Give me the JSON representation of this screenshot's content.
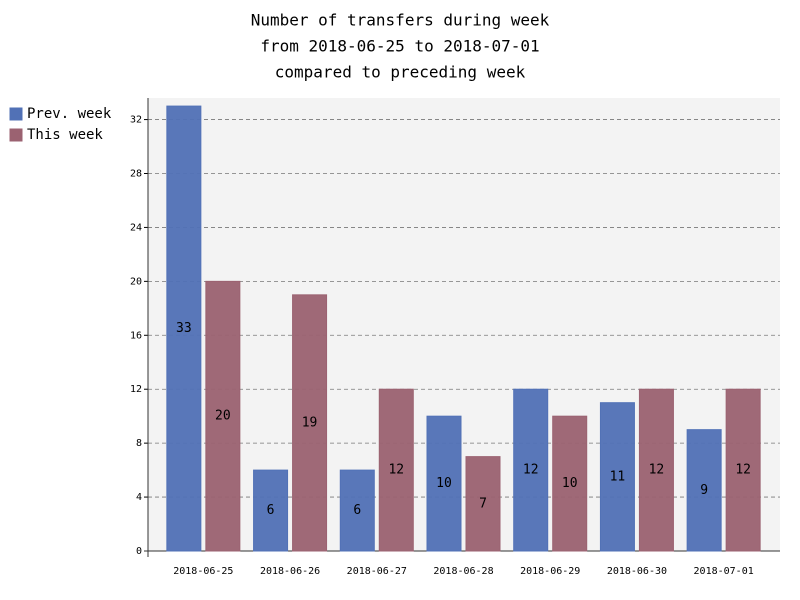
{
  "chart_data": {
    "type": "bar",
    "title": [
      "Number of transfers during week",
      "from 2018-06-25 to 2018-07-01",
      "compared to preceding week"
    ],
    "categories": [
      "2018-06-25",
      "2018-06-26",
      "2018-06-27",
      "2018-06-28",
      "2018-06-29",
      "2018-06-30",
      "2018-07-01"
    ],
    "series": [
      {
        "name": "Prev. week",
        "color": "#5171b6",
        "values": [
          33,
          6,
          6,
          10,
          12,
          11,
          9
        ]
      },
      {
        "name": "This week",
        "color": "#9b6271",
        "values": [
          20,
          19,
          12,
          7,
          10,
          12,
          12
        ]
      }
    ],
    "ylim": [
      0,
      33.6
    ],
    "yticks": [
      0,
      4,
      8,
      12,
      16,
      20,
      24,
      28,
      32
    ],
    "grid": true,
    "legend": "top-left"
  }
}
